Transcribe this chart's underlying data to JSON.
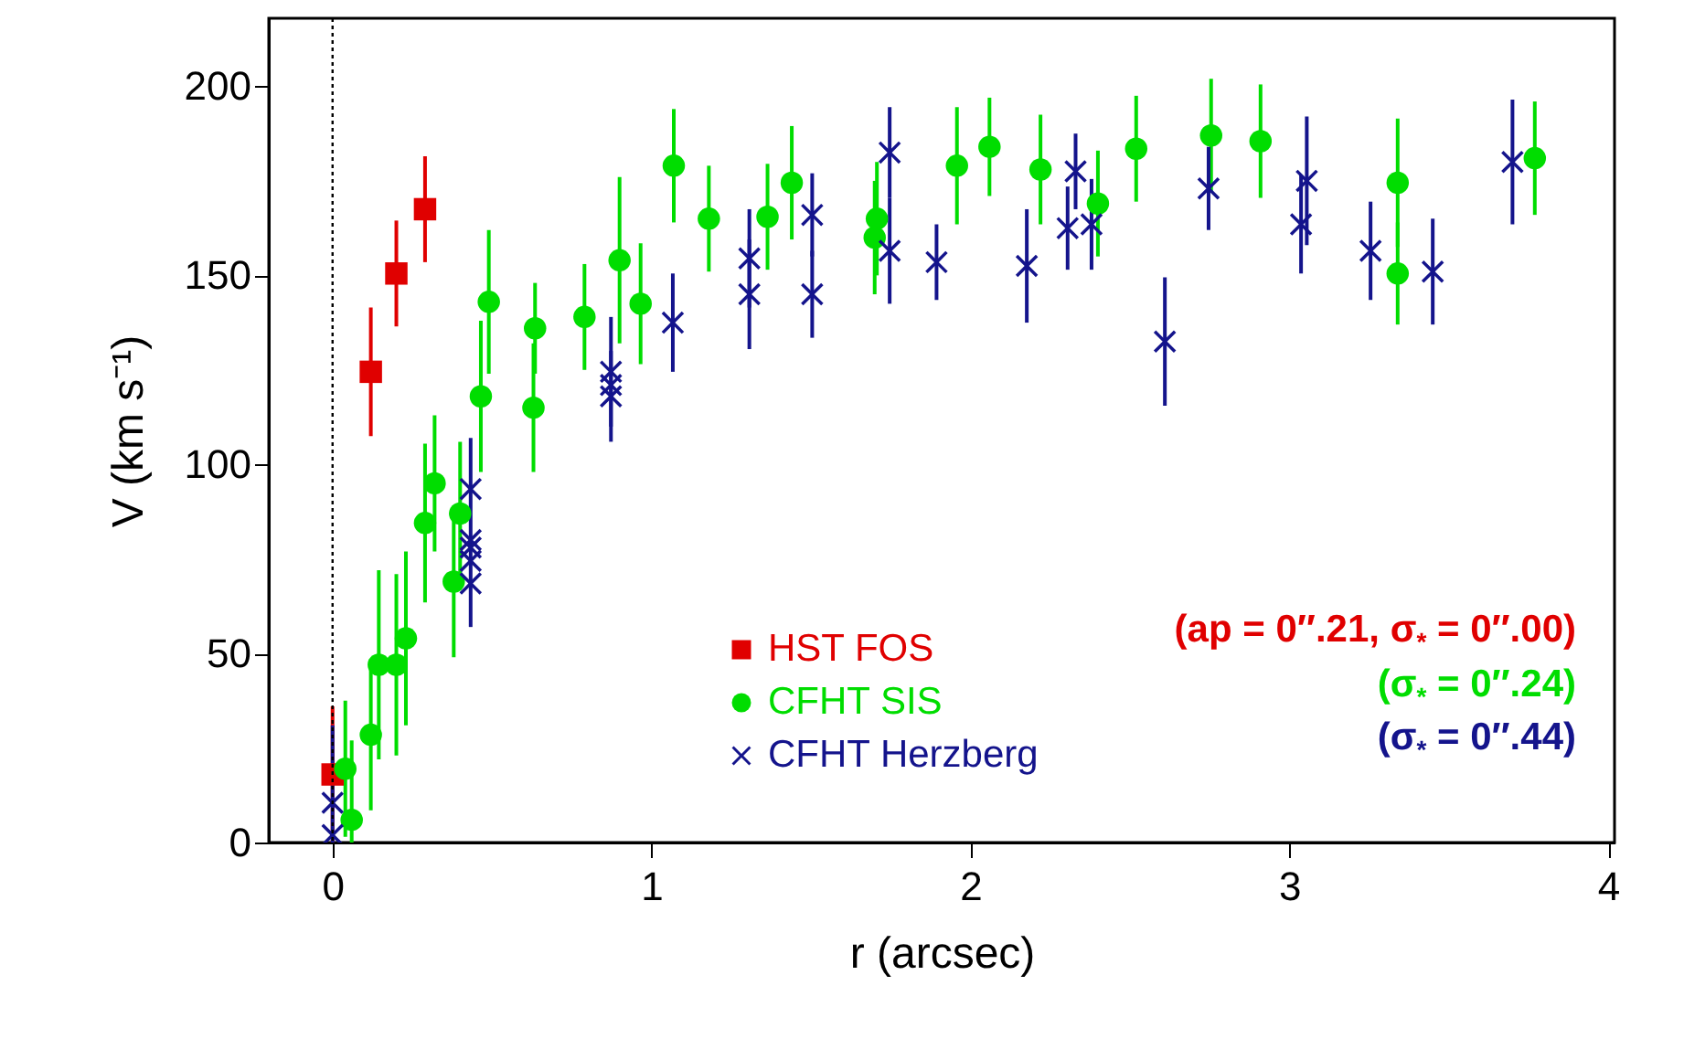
{
  "chart_data": {
    "type": "scatter",
    "xlabel": "r   (arcsec)",
    "ylabel": "V   (km s⁻¹)",
    "xlim": [
      -0.2,
      4.02
    ],
    "ylim": [
      0,
      218
    ],
    "xticks": [
      0,
      1,
      2,
      3,
      4
    ],
    "yticks": [
      0,
      50,
      100,
      150,
      200
    ],
    "grid": false,
    "legend": "bottom right",
    "ref_lines": [
      {
        "axis": "x",
        "value": 0,
        "line_style": "dotted",
        "color": "#000000"
      }
    ],
    "annotations": [
      "(ap = 0″.21, σ$_{*}$ = 0″.00)",
      "(σ$_{*}$ = 0″.24)",
      "(σ$_{*}$ = 0″.44)"
    ],
    "series": [
      {
        "name": "HST FOS",
        "color": "#e00000",
        "marker": "square",
        "x": [
          0,
          0.12,
          0.2,
          0.29
        ],
        "values": [
          18,
          124.5,
          150.5,
          167.5
        ],
        "errors": [
          18,
          17,
          14,
          14
        ]
      },
      {
        "name": "CFHT SIS",
        "color": "#00dd00",
        "marker": "circle",
        "x": [
          0.04,
          0.06,
          0.12,
          0.145,
          0.2,
          0.23,
          0.29,
          0.32,
          0.38,
          0.4,
          0.465,
          0.49,
          0.63,
          0.635,
          0.79,
          0.9,
          0.966,
          1.07,
          1.18,
          1.364,
          1.44,
          1.7,
          1.707,
          1.958,
          2.06,
          2.22,
          2.4,
          2.52,
          2.755,
          2.91,
          3.34,
          3.34,
          3.77
        ],
        "values": [
          19.5,
          6,
          28.5,
          47,
          47,
          54,
          84.5,
          95,
          69,
          87,
          118,
          143,
          115,
          136,
          139,
          154,
          142.5,
          179,
          165,
          165.5,
          174.5,
          160,
          165,
          179,
          184,
          178,
          169,
          183.5,
          187,
          185.5,
          174.5,
          150.5,
          181
        ],
        "errors": [
          18,
          [
            0,
            27
          ],
          20,
          25,
          24,
          23,
          21,
          18,
          20,
          19,
          20,
          19,
          17,
          12,
          14,
          22,
          16,
          15,
          14,
          14,
          15,
          15,
          15,
          15.5,
          13,
          14.5,
          14,
          14,
          15,
          15,
          17,
          13.5,
          15
        ]
      },
      {
        "name": "CFHT  Herzberg",
        "color": "#14148c",
        "marker": "cross",
        "x": [
          0,
          0,
          0.433,
          0.433,
          0.433,
          0.433,
          0.433,
          0.873,
          0.873,
          0.873,
          1.067,
          1.307,
          1.307,
          1.504,
          1.504,
          1.747,
          1.747,
          1.894,
          2.177,
          2.305,
          2.33,
          2.38,
          2.61,
          2.747,
          3.037,
          3.055,
          3.255,
          3.45,
          3.7
        ],
        "values": [
          10.5,
          2,
          93.5,
          80,
          78,
          74.5,
          68.5,
          124.5,
          121,
          118,
          137.5,
          154.5,
          145,
          166,
          145,
          182.5,
          156.5,
          153.5,
          152.5,
          162.5,
          177.5,
          163.5,
          132.5,
          173,
          163.5,
          175,
          156.5,
          151,
          180
        ],
        "errors": [
          [
            0,
            31
          ],
          null,
          13.5,
          null,
          null,
          null,
          11.5,
          14.5,
          null,
          12,
          13,
          13,
          14.5,
          11,
          11.5,
          12,
          14,
          10,
          15,
          11,
          10,
          12,
          17,
          11,
          13,
          17,
          13,
          14,
          16.5
        ]
      }
    ]
  }
}
